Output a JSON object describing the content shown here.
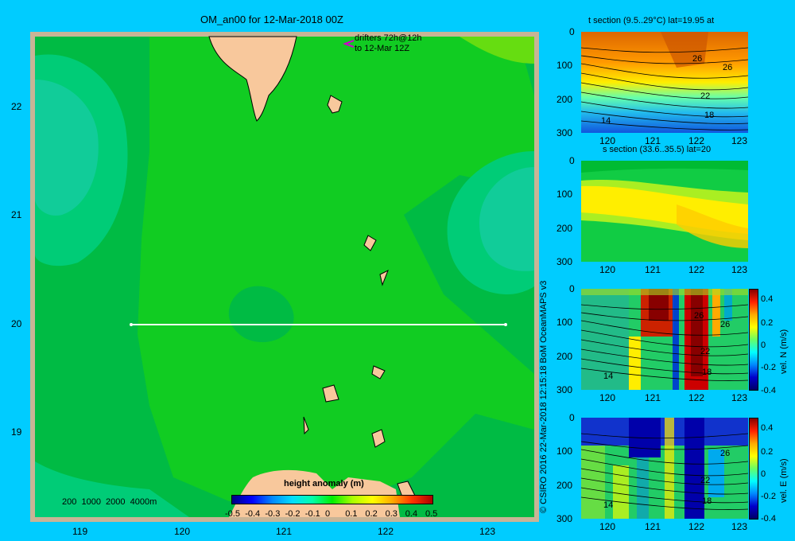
{
  "map": {
    "title": "OM_an00 for 12-Mar-2018 00Z",
    "drifter_note_1": "drifters 72h@12h",
    "drifter_note_2": "to 12-Mar 12Z",
    "x_ticks": [
      "119",
      "120",
      "121",
      "122",
      "123"
    ],
    "y_ticks": [
      "22",
      "21",
      "20",
      "19"
    ],
    "depth_legend": "200  1000  2000  4000m",
    "colorbar_title": "height anomaly (m)",
    "colorbar_labels": [
      "-0.5",
      "-0.4",
      "-0.3",
      "-0.2",
      "-0.1",
      "0",
      "0.1",
      "0.2",
      "0.3",
      "0.4",
      "0.5"
    ],
    "section_lat": 20,
    "section_lon_range": [
      119.5,
      123.2
    ],
    "lon_range": [
      118.5,
      123.5
    ],
    "lat_range": [
      18.25,
      22.7
    ],
    "colors": {
      "background": "#00ccff",
      "land": "#f8c89c",
      "shelf": "#c8b496",
      "ocean_main": "#11cc22",
      "ocean_dark": "#00bb44",
      "ocean_teal": "#11cc99"
    }
  },
  "panels": [
    {
      "title": "t section (9.5..29°C) lat=19.95 at",
      "x_ticks": [
        "120",
        "121",
        "122",
        "123"
      ],
      "y_ticks": [
        "0",
        "100",
        "200",
        "300"
      ],
      "contour_labels": [
        "26",
        "26",
        "22",
        "18",
        "14"
      ],
      "colorbar": false
    },
    {
      "title": "s section (33.6..35.5) lat=20",
      "x_ticks": [
        "120",
        "121",
        "122",
        "123"
      ],
      "y_ticks": [
        "0",
        "100",
        "200",
        "300"
      ],
      "contour_labels": [],
      "colorbar": false
    },
    {
      "title": "",
      "x_ticks": [
        "120",
        "121",
        "122",
        "123"
      ],
      "y_ticks": [
        "0",
        "100",
        "200",
        "300"
      ],
      "contour_labels": [
        "26",
        "26",
        "22",
        "18",
        "14"
      ],
      "colorbar": true,
      "colorbar_label": "vel. N (m/s)",
      "colorbar_ticks": [
        "0.4",
        "0.2",
        "0",
        "-0.2",
        "-0.4"
      ]
    },
    {
      "title": "",
      "x_ticks": [
        "120",
        "121",
        "122",
        "123"
      ],
      "y_ticks": [
        "0",
        "100",
        "200",
        "300"
      ],
      "contour_labels": [
        "26",
        "22",
        "18",
        "14"
      ],
      "colorbar": true,
      "colorbar_label": "vel. E (m/s)",
      "colorbar_ticks": [
        "0.4",
        "0.2",
        "0",
        "-0.2",
        "-0.4"
      ]
    }
  ],
  "credit": "© CSIRO 2016   22-Mar-2018 12:15:18 BoM OceanMAPS v3"
}
